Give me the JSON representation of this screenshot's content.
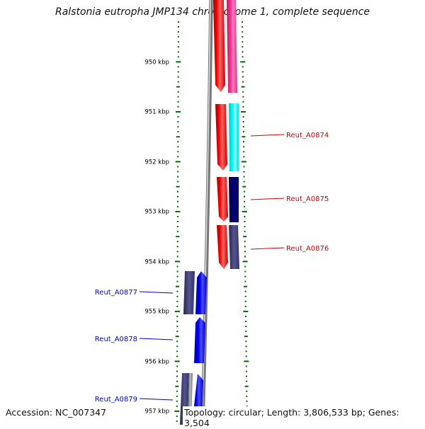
{
  "title": "Ralstonia eutropha JMP134 chromosome 1, complete sequence",
  "footer": {
    "accession": "Accession: NC_007347",
    "topology": "Topology: circular; Length: 3,806,533 bp; Genes: 3,504"
  },
  "axis": {
    "unit": "kbp",
    "ticks": [
      "950 kbp",
      "951 kbp",
      "952 kbp",
      "953 kbp",
      "954 kbp",
      "955 kbp",
      "956 kbp",
      "957 kbp"
    ]
  },
  "genes": [
    {
      "label": "Reut_A0874",
      "color": "#cc0000",
      "side": "right"
    },
    {
      "label": "Reut_A0875",
      "color": "#cc0000",
      "side": "right"
    },
    {
      "label": "Reut_A0876",
      "color": "#cc0000",
      "side": "right"
    },
    {
      "label": "Reut_A0877",
      "color": "#0000cc",
      "side": "left"
    },
    {
      "label": "Reut_A0878",
      "color": "#0000cc",
      "side": "left"
    },
    {
      "label": "Reut_A0879",
      "color": "#0000cc",
      "side": "left"
    }
  ],
  "colors": {
    "forward_cds": "#ff0000",
    "reverse_cds": "#0000ff",
    "pink_feature": "#ff3399",
    "cyan_feature": "#00ffff",
    "navy_feature": "#000066",
    "slate_feature": "#3d3d7a",
    "backbone": "#888888",
    "tick_green": "#006600"
  }
}
